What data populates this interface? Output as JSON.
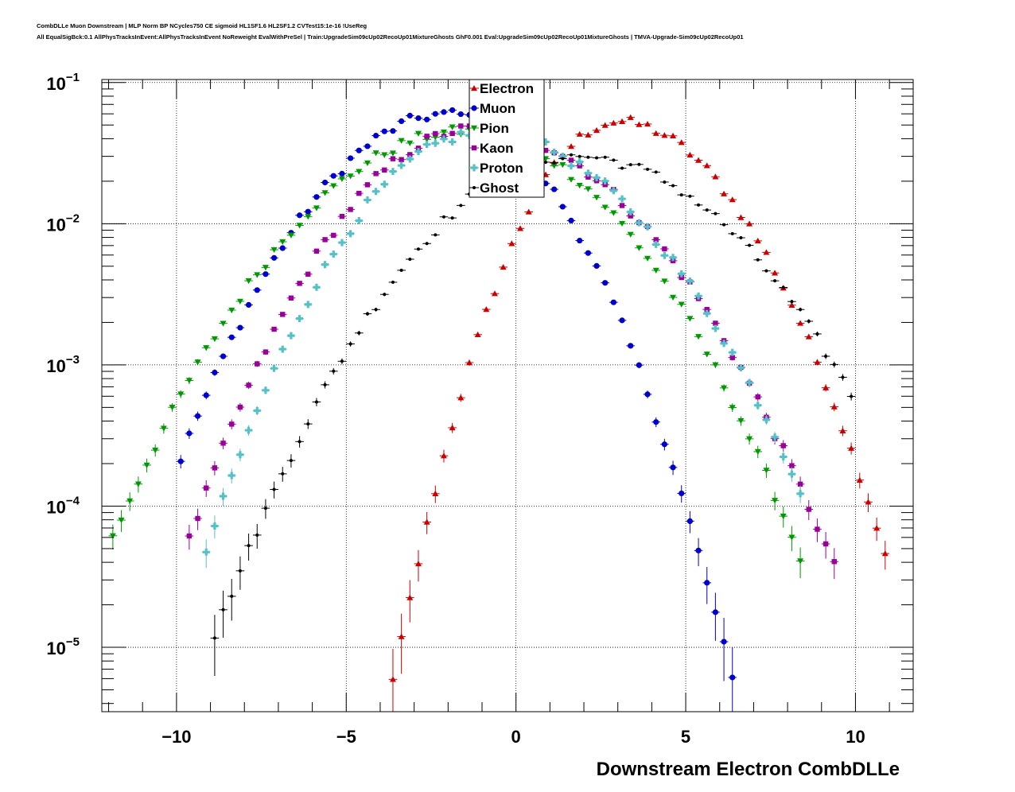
{
  "header": {
    "line1": "CombDLLe Muon Downstream | MLP Norm BP NCycles750 CE sigmoid HL1SF1.6 HL2SF1.2 CVTest15:1e-16 !UseReg",
    "line2": "All EqualSigBck:0.1 AllPhysTracksInEvent:AllPhysTracksInEvent NoReweight EvalWithPreSel | Train:UpgradeSim09cUp02RecoUp01MixtureGhosts GhF0.001 Eval:UpgradeSim09cUp02RecoUp01MixtureGhosts | TMVA-Upgrade-Sim09cUp02RecoUp01"
  },
  "chart_data": {
    "type": "scatter",
    "title": "",
    "xlabel": "Downstream Electron CombDLLe",
    "ylabel": "",
    "xlim": [
      -12.2,
      11.7
    ],
    "ylim": [
      3.5e-06,
      0.105
    ],
    "yscale": "log",
    "grid": true,
    "legend_position": "top-center",
    "x_ticks": [
      {
        "value": -10,
        "label": "−10"
      },
      {
        "value": -5,
        "label": "−5"
      },
      {
        "value": 0,
        "label": "0"
      },
      {
        "value": 5,
        "label": "5"
      },
      {
        "value": 10,
        "label": "10"
      }
    ],
    "y_ticks": [
      {
        "value": 1e-05,
        "base": "10",
        "exp": "−5"
      },
      {
        "value": 0.0001,
        "base": "10",
        "exp": "−4"
      },
      {
        "value": 0.001,
        "base": "10",
        "exp": "−3"
      },
      {
        "value": 0.01,
        "base": "10",
        "exp": "−2"
      },
      {
        "value": 0.1,
        "base": "10",
        "exp": "−1"
      }
    ],
    "bin_width": 0.25,
    "series": [
      {
        "name": "Electron",
        "color": "#cc0000",
        "marker": "triangle-up",
        "peak": 0.053,
        "mu": 3.0,
        "sigma_left": 1.55,
        "sigma_right": 2.1,
        "x_min": -5.9,
        "x_max": 11.1
      },
      {
        "name": "Muon",
        "color": "#0000cc",
        "marker": "circle",
        "peak": 0.06,
        "mu": -2.0,
        "sigma_left": 2.35,
        "sigma_right": 1.95,
        "x_min": -10.0,
        "x_max": 8.0
      },
      {
        "name": "Pion",
        "color": "#009900",
        "marker": "triangle-down",
        "peak": 0.045,
        "mu": -1.5,
        "sigma_left": 2.85,
        "sigma_right": 2.65,
        "x_min": -12.1,
        "x_max": 8.6
      },
      {
        "name": "Kaon",
        "color": "#990099",
        "marker": "square",
        "peak": 0.047,
        "mu": -1.2,
        "sigma_left": 2.3,
        "sigma_right": 2.8,
        "x_min": -9.9,
        "x_max": 9.4
      },
      {
        "name": "Proton",
        "color": "#55c0c8",
        "marker": "cross",
        "peak": 0.044,
        "mu": -1.0,
        "sigma_left": 2.2,
        "sigma_right": 2.75,
        "x_min": -9.4,
        "x_max": 8.6
      },
      {
        "name": "Ghost",
        "color": "#000000",
        "marker": "dot",
        "peak": 0.03,
        "mu": 1.8,
        "sigma_left": 2.7,
        "sigma_right": 2.9,
        "x_min": -9.2,
        "x_max": 9.9
      }
    ]
  }
}
